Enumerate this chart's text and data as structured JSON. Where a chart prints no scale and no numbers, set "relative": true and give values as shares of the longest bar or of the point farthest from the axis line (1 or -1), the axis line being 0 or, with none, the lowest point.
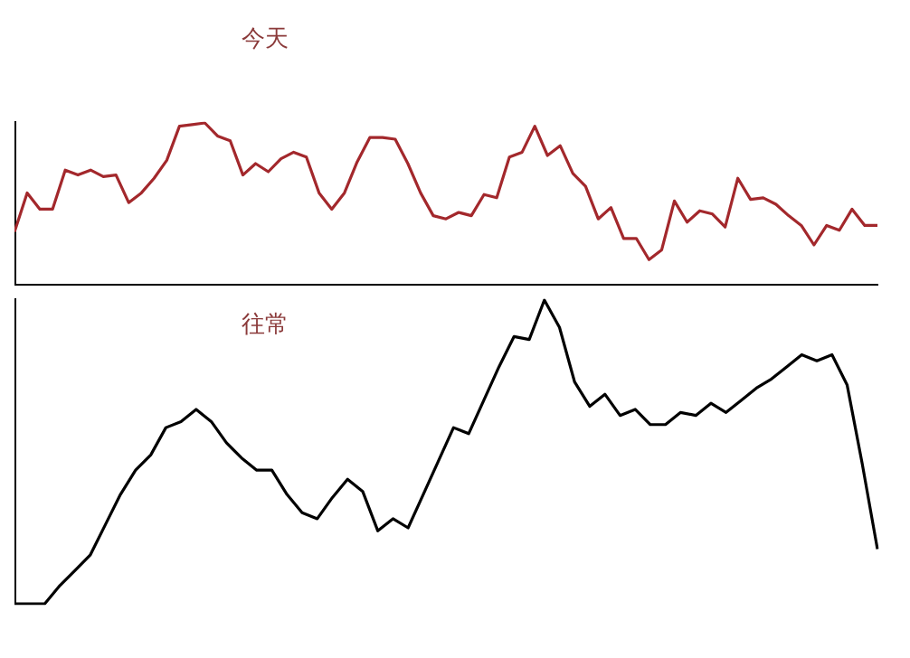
{
  "chart_data": [
    {
      "type": "line",
      "title": "今天",
      "relative": true,
      "categories": [
        null,
        null,
        null,
        null,
        null,
        null,
        null,
        null,
        null,
        null,
        null,
        null,
        null,
        null,
        null,
        null,
        null,
        null,
        null,
        null,
        null,
        null,
        null,
        null,
        null,
        null,
        null,
        null,
        null,
        null,
        null,
        null,
        null,
        null,
        null,
        null,
        null,
        null,
        null,
        null,
        null,
        null,
        null,
        null,
        null,
        null,
        null,
        null,
        null,
        null,
        null,
        null,
        null,
        null,
        null,
        null,
        null,
        null,
        null,
        null,
        null,
        null,
        null,
        null,
        null,
        null,
        null,
        null,
        null
      ],
      "series": [
        {
          "color": "#a3282c",
          "values": [
            0.33,
            0.57,
            0.47,
            0.47,
            0.71,
            0.68,
            0.71,
            0.67,
            0.68,
            0.51,
            0.57,
            0.66,
            0.77,
            0.98,
            0.99,
            1,
            0.92,
            0.89,
            0.68,
            0.75,
            0.7,
            0.78,
            0.82,
            0.79,
            0.57,
            0.47,
            0.57,
            0.76,
            0.91,
            0.91,
            0.9,
            0.75,
            0.57,
            0.43,
            0.41,
            0.45,
            0.43,
            0.56,
            0.54,
            0.79,
            0.82,
            0.98,
            0.8,
            0.86,
            0.69,
            0.61,
            0.41,
            0.48,
            0.29,
            0.29,
            0.16,
            0.22,
            0.52,
            0.39,
            0.46,
            0.44,
            0.36,
            0.66,
            0.53,
            0.54,
            0.5,
            0.43,
            0.37,
            0.25,
            0.37,
            0.34,
            0.47,
            0.37,
            0.37
          ]
        }
      ]
    },
    {
      "type": "line",
      "title": "往常",
      "relative": true,
      "categories": [
        null,
        null,
        null,
        null,
        null,
        null,
        null,
        null,
        null,
        null,
        null,
        null,
        null,
        null,
        null,
        null,
        null,
        null,
        null,
        null,
        null,
        null,
        null,
        null,
        null,
        null,
        null,
        null,
        null,
        null,
        null,
        null,
        null,
        null,
        null,
        null,
        null,
        null,
        null,
        null,
        null,
        null,
        null,
        null,
        null,
        null,
        null,
        null,
        null,
        null,
        null,
        null,
        null,
        null,
        null,
        null,
        null,
        null
      ],
      "series": [
        {
          "color": "#000000",
          "values": [
            0,
            0,
            0,
            0.06,
            0.11,
            0.16,
            0.26,
            0.36,
            0.44,
            0.49,
            0.58,
            0.6,
            0.64,
            0.6,
            0.53,
            0.48,
            0.44,
            0.44,
            0.36,
            0.3,
            0.28,
            0.35,
            0.41,
            0.37,
            0.24,
            0.28,
            0.25,
            0.36,
            0.47,
            0.58,
            0.56,
            0.67,
            0.78,
            0.88,
            0.87,
            1,
            0.91,
            0.73,
            0.65,
            0.69,
            0.62,
            0.64,
            0.59,
            0.59,
            0.63,
            0.62,
            0.66,
            0.63,
            0.67,
            0.71,
            0.74,
            0.78,
            0.82,
            0.8,
            0.82,
            0.72,
            0.46,
            0.18
          ]
        }
      ]
    }
  ]
}
